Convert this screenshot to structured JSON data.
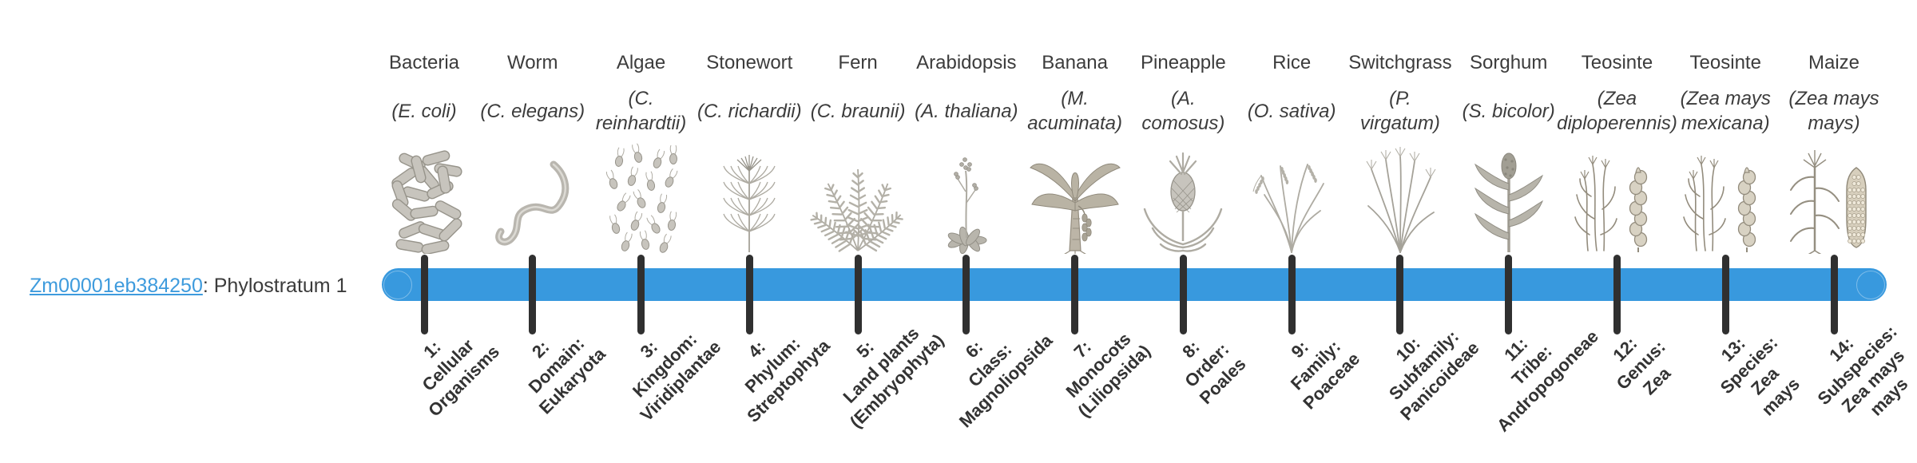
{
  "gene": {
    "id": "Zm00001eb384250",
    "suffix": ": Phylostratum 1"
  },
  "timeline": {
    "bar_color": "#3899de",
    "tick_color": "#303030",
    "link_color": "#3e9bdd",
    "text_color": "#3c3c3c"
  },
  "columns": [
    {
      "name": "Bacteria",
      "species": "(E. coli)",
      "icon": "bacteria-icon",
      "stratum": "1:\nCellular\nOrganisms"
    },
    {
      "name": "Worm",
      "species": "(C. elegans)",
      "icon": "worm-icon",
      "stratum": "2:\nDomain:\nEukaryota"
    },
    {
      "name": "Algae",
      "species": "(C.\nreinhardtii)",
      "icon": "algae-icon",
      "stratum": "3:\nKingdom:\nViridiplantae"
    },
    {
      "name": "Stonewort",
      "species": "(C. richardii)",
      "icon": "stonewort-icon",
      "stratum": "4:\nPhylum:\nStreptophyta"
    },
    {
      "name": "Fern",
      "species": "(C. braunii)",
      "icon": "fern-icon",
      "stratum": "5:\nLand plants\n(Embryophyta)"
    },
    {
      "name": "Arabidopsis",
      "species": "(A. thaliana)",
      "icon": "arabidopsis-icon",
      "stratum": "6:\nClass:\nMagnoliopsida"
    },
    {
      "name": "Banana",
      "species": "(M.\nacuminata)",
      "icon": "banana-icon",
      "stratum": "7:\nMonocots\n(Liliopsida)"
    },
    {
      "name": "Pineapple",
      "species": "(A.\ncomosus)",
      "icon": "pineapple-icon",
      "stratum": "8:\nOrder:\nPoales"
    },
    {
      "name": "Rice",
      "species": "(O. sativa)",
      "icon": "rice-icon",
      "stratum": "9:\nFamily:\nPoaceae"
    },
    {
      "name": "Switchgrass",
      "species": "(P.\nvirgatum)",
      "icon": "switchgrass-icon",
      "stratum": "10:\nSubfamily:\nPanicoideae"
    },
    {
      "name": "Sorghum",
      "species": "(S. bicolor)",
      "icon": "sorghum-icon",
      "stratum": "11:\nTribe:\nAndropogoneae"
    },
    {
      "name": "Teosinte",
      "species": "(Zea\ndiploperennis)",
      "icon": "teosinte-diplo-icon",
      "stratum": "12:\nGenus:\nZea"
    },
    {
      "name": "Teosinte",
      "species": "(Zea mays\nmexicana)",
      "icon": "teosinte-mexicana-icon",
      "stratum": "13:\nSpecies:\nZea\nmays"
    },
    {
      "name": "Maize",
      "species": "(Zea mays\nmays)",
      "icon": "maize-icon",
      "stratum": "14:\nSubspecies:\nZea mays\nmays"
    }
  ]
}
